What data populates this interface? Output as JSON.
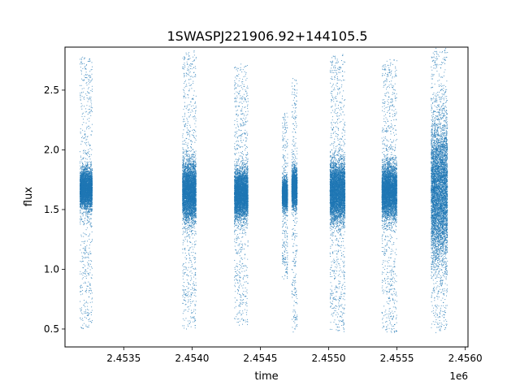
{
  "chart_data": {
    "type": "scatter",
    "title": "1SWASPJ221906.92+144105.5",
    "xlabel": "time",
    "ylabel": "flux",
    "x_offset_label": "1e6",
    "x_ticks": [
      2.4535,
      2.454,
      2.4545,
      2.455,
      2.4555,
      2.456
    ],
    "x_tick_labels": [
      "2.4535",
      "2.4540",
      "2.4545",
      "2.4550",
      "2.4555",
      "2.4560"
    ],
    "y_ticks": [
      0.5,
      1.0,
      1.5,
      2.0,
      2.5
    ],
    "y_tick_labels": [
      "0.5",
      "1.0",
      "1.5",
      "2.0",
      "2.5"
    ],
    "xlim": [
      2.45307,
      2.45602
    ],
    "ylim": [
      0.35,
      2.86
    ],
    "grid": false,
    "marker_color": "#1f77b4",
    "segments": [
      {
        "x_start": 2.45318,
        "x_end": 2.45327,
        "center": 1.67,
        "core_sd": 0.08,
        "min": 0.5,
        "max": 2.78
      },
      {
        "x_start": 2.45393,
        "x_end": 2.45403,
        "center": 1.65,
        "core_sd": 0.12,
        "min": 0.5,
        "max": 2.84
      },
      {
        "x_start": 2.45431,
        "x_end": 2.45441,
        "center": 1.63,
        "core_sd": 0.1,
        "min": 0.53,
        "max": 2.72
      },
      {
        "x_start": 2.45466,
        "x_end": 2.4547,
        "center": 1.63,
        "core_sd": 0.06,
        "min": 0.92,
        "max": 2.32
      },
      {
        "x_start": 2.45473,
        "x_end": 2.45477,
        "center": 1.68,
        "core_sd": 0.08,
        "min": 0.47,
        "max": 2.6
      },
      {
        "x_start": 2.45501,
        "x_end": 2.45512,
        "center": 1.65,
        "core_sd": 0.12,
        "min": 0.47,
        "max": 2.81
      },
      {
        "x_start": 2.45539,
        "x_end": 2.4555,
        "center": 1.65,
        "core_sd": 0.11,
        "min": 0.47,
        "max": 2.77
      },
      {
        "x_start": 2.45575,
        "x_end": 2.45587,
        "center": 1.65,
        "core_sd": 0.28,
        "min": 0.47,
        "max": 2.85
      }
    ]
  }
}
